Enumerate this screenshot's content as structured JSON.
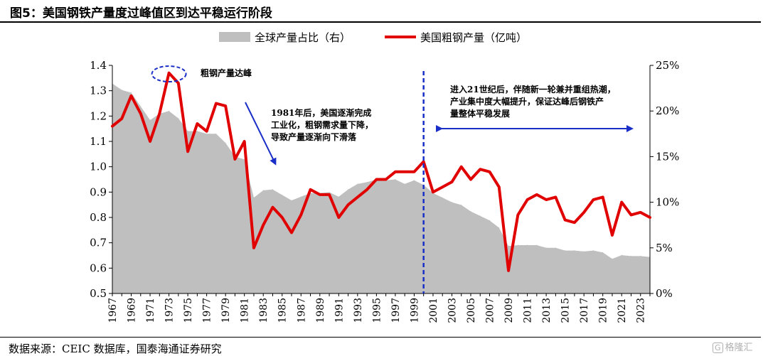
{
  "figure": {
    "title": "图5：美国钢铁产量度过峰值区到达平稳运行阶段",
    "source": "数据来源：CEIC 数据库，国泰海通证券研究",
    "watermark": "格隆汇",
    "watermark_icon": "G"
  },
  "chart_data": {
    "type": "line",
    "title": "",
    "legend_position": "top-center",
    "x": [
      1967,
      1968,
      1969,
      1970,
      1971,
      1972,
      1973,
      1974,
      1975,
      1976,
      1977,
      1978,
      1979,
      1980,
      1981,
      1982,
      1983,
      1984,
      1985,
      1986,
      1987,
      1988,
      1989,
      1990,
      1991,
      1992,
      1993,
      1994,
      1995,
      1996,
      1997,
      1998,
      1999,
      2000,
      2001,
      2002,
      2003,
      2004,
      2005,
      2006,
      2007,
      2008,
      2009,
      2010,
      2011,
      2012,
      2013,
      2014,
      2015,
      2016,
      2017,
      2018,
      2019,
      2020,
      2021,
      2022,
      2023,
      2024
    ],
    "x_tick_labels": [
      "1967",
      "1969",
      "1971",
      "1973",
      "1975",
      "1977",
      "1979",
      "1981",
      "1983",
      "1985",
      "1987",
      "1989",
      "1991",
      "1993",
      "1995",
      "1997",
      "1999",
      "2001",
      "2003",
      "2005",
      "2007",
      "2009",
      "2011",
      "2013",
      "2015",
      "2017",
      "2019",
      "2021",
      "2023"
    ],
    "y_left": {
      "min": 0.5,
      "max": 1.4,
      "ticks": [
        "0.5",
        "0.6",
        "0.7",
        "0.8",
        "0.9",
        "1.0",
        "1.1",
        "1.2",
        "1.3",
        "1.4"
      ]
    },
    "y_right": {
      "min": 0,
      "max": 25,
      "ticks": [
        "0%",
        "5%",
        "10%",
        "15%",
        "20%",
        "25%"
      ]
    },
    "series": [
      {
        "name": "全球产量占比（右）",
        "kind": "area",
        "axis": "right",
        "color": "#bfbfbf",
        "values": [
          23.0,
          22.3,
          22.0,
          20.5,
          19.0,
          19.7,
          20.0,
          19.2,
          17.8,
          17.8,
          17.5,
          17.5,
          16.5,
          15.0,
          14.7,
          10.5,
          11.3,
          11.4,
          10.8,
          10.2,
          10.6,
          11.0,
          11.0,
          11.1,
          10.6,
          11.4,
          12.0,
          12.2,
          12.5,
          12.4,
          12.5,
          12.0,
          12.4,
          11.9,
          11.0,
          10.5,
          10.0,
          9.7,
          9.0,
          8.5,
          8.0,
          7.2,
          5.2,
          5.3,
          5.3,
          5.3,
          5.0,
          5.0,
          4.7,
          4.7,
          4.6,
          4.7,
          4.5,
          3.8,
          4.2,
          4.1,
          4.1,
          4.0
        ]
      },
      {
        "name": "美国粗钢产量（亿吨）",
        "kind": "line",
        "axis": "left",
        "color": "#e00000",
        "values": [
          1.16,
          1.19,
          1.28,
          1.21,
          1.1,
          1.21,
          1.37,
          1.33,
          1.06,
          1.17,
          1.14,
          1.25,
          1.24,
          1.03,
          1.1,
          0.68,
          0.77,
          0.84,
          0.8,
          0.74,
          0.81,
          0.91,
          0.89,
          0.89,
          0.8,
          0.85,
          0.88,
          0.91,
          0.95,
          0.95,
          0.98,
          0.98,
          0.98,
          1.02,
          0.9,
          0.92,
          0.94,
          1.0,
          0.95,
          0.99,
          0.98,
          0.92,
          0.59,
          0.81,
          0.87,
          0.89,
          0.87,
          0.88,
          0.79,
          0.78,
          0.82,
          0.87,
          0.88,
          0.73,
          0.86,
          0.81,
          0.82,
          0.8
        ]
      }
    ],
    "annotations": {
      "peak": "粗钢产量达峰",
      "decline": [
        "1981年后，美国逐渐完成",
        "工业化，粗钢需求量下降，",
        "导致产量逐渐向下滑落"
      ],
      "stable": [
        "进入21世纪后，伴随新一轮兼并重组热潮，",
        "产业集中度大幅提升，保证达峰后钢铁产",
        "量整体平稳发展"
      ],
      "divider_year": 2000,
      "peak_year": 1973
    }
  }
}
